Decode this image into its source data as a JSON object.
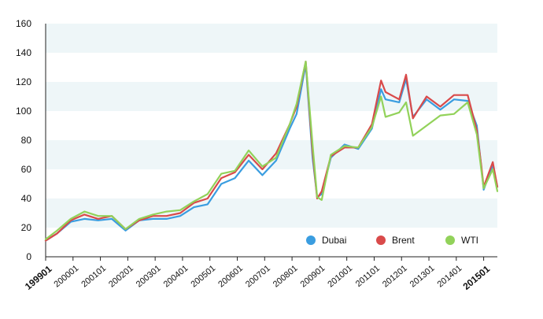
{
  "chart_data": {
    "type": "line",
    "title": "",
    "xlabel": "",
    "ylabel": "",
    "ylim": [
      0,
      160
    ],
    "yticks": [
      0,
      20,
      40,
      60,
      80,
      100,
      120,
      140,
      160
    ],
    "y_bands": [
      [
        20,
        40
      ],
      [
        60,
        80
      ],
      [
        100,
        120
      ],
      [
        140,
        160
      ]
    ],
    "band_color": "#eef6f8",
    "x_tick_labels": [
      "199901",
      "200001",
      "200101",
      "200201",
      "200301",
      "200401",
      "200501",
      "200601",
      "200701",
      "200801",
      "200901",
      "201001",
      "201101",
      "201201",
      "201301",
      "201401",
      "201501"
    ],
    "x_tick_bold": [
      "199901",
      "201501"
    ],
    "x_range": [
      "1999-01",
      "2015-07"
    ],
    "legend_position": "bottom-right",
    "series": [
      {
        "name": "Dubai",
        "color": "#3a9de0",
        "points": [
          [
            "1999-01",
            11
          ],
          [
            "1999-06",
            16
          ],
          [
            "1999-12",
            24
          ],
          [
            "2000-06",
            26
          ],
          [
            "2000-12",
            25
          ],
          [
            "2001-06",
            26
          ],
          [
            "2001-12",
            18
          ],
          [
            "2002-06",
            25
          ],
          [
            "2002-12",
            26
          ],
          [
            "2003-06",
            26
          ],
          [
            "2003-12",
            28
          ],
          [
            "2004-06",
            34
          ],
          [
            "2004-12",
            36
          ],
          [
            "2005-06",
            50
          ],
          [
            "2005-12",
            54
          ],
          [
            "2006-06",
            66
          ],
          [
            "2006-12",
            56
          ],
          [
            "2007-06",
            66
          ],
          [
            "2007-12",
            88
          ],
          [
            "2008-03",
            98
          ],
          [
            "2008-07",
            132
          ],
          [
            "2008-10",
            68
          ],
          [
            "2008-12",
            41
          ],
          [
            "2009-02",
            43
          ],
          [
            "2009-06",
            68
          ],
          [
            "2009-12",
            77
          ],
          [
            "2010-06",
            74
          ],
          [
            "2010-12",
            88
          ],
          [
            "2011-04",
            115
          ],
          [
            "2011-06",
            108
          ],
          [
            "2011-12",
            106
          ],
          [
            "2012-03",
            122
          ],
          [
            "2012-06",
            96
          ],
          [
            "2012-12",
            108
          ],
          [
            "2013-06",
            101
          ],
          [
            "2013-12",
            108
          ],
          [
            "2014-06",
            107
          ],
          [
            "2014-10",
            90
          ],
          [
            "2014-12",
            61
          ],
          [
            "2015-01",
            46
          ],
          [
            "2015-05",
            63
          ],
          [
            "2015-07",
            48
          ]
        ]
      },
      {
        "name": "Brent",
        "color": "#d94a4a",
        "points": [
          [
            "1999-01",
            11
          ],
          [
            "1999-06",
            16
          ],
          [
            "1999-12",
            25
          ],
          [
            "2000-06",
            29
          ],
          [
            "2000-12",
            26
          ],
          [
            "2001-06",
            28
          ],
          [
            "2001-12",
            19
          ],
          [
            "2002-06",
            25
          ],
          [
            "2002-12",
            28
          ],
          [
            "2003-06",
            28
          ],
          [
            "2003-12",
            30
          ],
          [
            "2004-06",
            37
          ],
          [
            "2004-12",
            40
          ],
          [
            "2005-06",
            54
          ],
          [
            "2005-12",
            58
          ],
          [
            "2006-06",
            70
          ],
          [
            "2006-12",
            60
          ],
          [
            "2007-06",
            71
          ],
          [
            "2007-12",
            91
          ],
          [
            "2008-03",
            103
          ],
          [
            "2008-07",
            134
          ],
          [
            "2008-10",
            72
          ],
          [
            "2008-12",
            40
          ],
          [
            "2009-02",
            45
          ],
          [
            "2009-06",
            69
          ],
          [
            "2009-12",
            75
          ],
          [
            "2010-06",
            75
          ],
          [
            "2010-12",
            91
          ],
          [
            "2011-04",
            121
          ],
          [
            "2011-06",
            113
          ],
          [
            "2011-12",
            108
          ],
          [
            "2012-03",
            125
          ],
          [
            "2012-06",
            95
          ],
          [
            "2012-12",
            110
          ],
          [
            "2013-06",
            103
          ],
          [
            "2013-12",
            111
          ],
          [
            "2014-06",
            111
          ],
          [
            "2014-10",
            87
          ],
          [
            "2014-12",
            62
          ],
          [
            "2015-01",
            48
          ],
          [
            "2015-05",
            65
          ],
          [
            "2015-07",
            48
          ]
        ]
      },
      {
        "name": "WTI",
        "color": "#92d25a",
        "points": [
          [
            "1999-01",
            12
          ],
          [
            "1999-06",
            18
          ],
          [
            "1999-12",
            26
          ],
          [
            "2000-06",
            31
          ],
          [
            "2000-12",
            28
          ],
          [
            "2001-06",
            28
          ],
          [
            "2001-12",
            19
          ],
          [
            "2002-06",
            26
          ],
          [
            "2002-12",
            29
          ],
          [
            "2003-06",
            31
          ],
          [
            "2003-12",
            32
          ],
          [
            "2004-06",
            38
          ],
          [
            "2004-12",
            43
          ],
          [
            "2005-06",
            57
          ],
          [
            "2005-12",
            59
          ],
          [
            "2006-06",
            73
          ],
          [
            "2006-12",
            62
          ],
          [
            "2007-06",
            68
          ],
          [
            "2007-12",
            91
          ],
          [
            "2008-03",
            105
          ],
          [
            "2008-07",
            134
          ],
          [
            "2008-10",
            77
          ],
          [
            "2008-12",
            41
          ],
          [
            "2009-02",
            39
          ],
          [
            "2009-06",
            70
          ],
          [
            "2009-12",
            76
          ],
          [
            "2010-06",
            75
          ],
          [
            "2010-12",
            89
          ],
          [
            "2011-04",
            110
          ],
          [
            "2011-06",
            96
          ],
          [
            "2011-12",
            99
          ],
          [
            "2012-03",
            106
          ],
          [
            "2012-06",
            83
          ],
          [
            "2012-12",
            90
          ],
          [
            "2013-06",
            97
          ],
          [
            "2013-12",
            98
          ],
          [
            "2014-06",
            106
          ],
          [
            "2014-10",
            84
          ],
          [
            "2014-12",
            59
          ],
          [
            "2015-01",
            47
          ],
          [
            "2015-05",
            60
          ],
          [
            "2015-07",
            45
          ]
        ]
      }
    ]
  }
}
